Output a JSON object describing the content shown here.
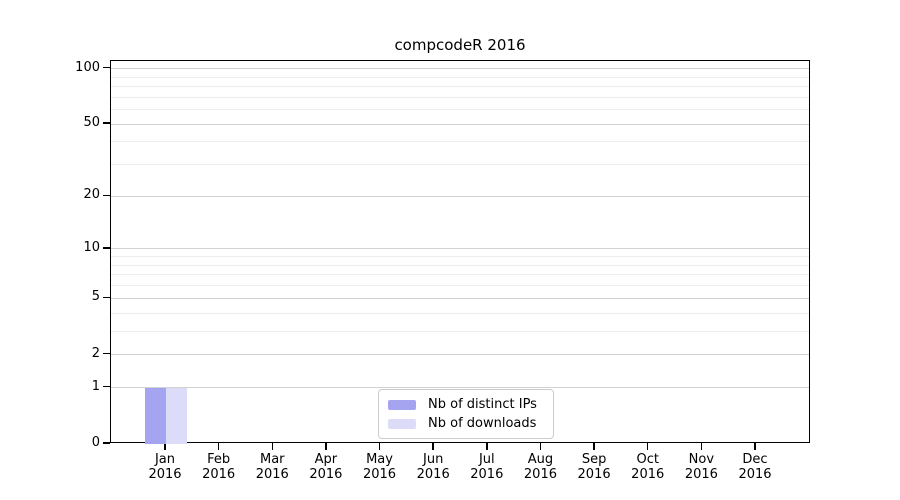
{
  "chart_data": {
    "type": "bar",
    "title": "compcodeR 2016",
    "categories": [
      "Jan 2016",
      "Feb 2016",
      "Mar 2016",
      "Apr 2016",
      "May 2016",
      "Jun 2016",
      "Jul 2016",
      "Aug 2016",
      "Sep 2016",
      "Oct 2016",
      "Nov 2016",
      "Dec 2016"
    ],
    "series": [
      {
        "name": "Nb of distinct IPs",
        "color": "#a4a4f1",
        "values": [
          1,
          0,
          0,
          0,
          0,
          0,
          0,
          0,
          0,
          0,
          0,
          0
        ]
      },
      {
        "name": "Nb of downloads",
        "color": "#dcdcf9",
        "values": [
          1,
          0,
          0,
          0,
          0,
          0,
          0,
          0,
          0,
          0,
          0,
          0
        ]
      }
    ],
    "yscale": "log1p",
    "ylim": [
      0,
      110
    ],
    "y_major_ticks": [
      0,
      1,
      2,
      5,
      10,
      20,
      50,
      100
    ],
    "y_minor_gridlines": [
      3,
      4,
      6,
      7,
      8,
      9,
      30,
      40,
      60,
      70,
      80,
      90
    ],
    "xlabel": "",
    "ylabel": "",
    "grid": "horizontal",
    "legend_position": "lower center"
  },
  "x_axis": {
    "months": [
      "Jan",
      "Feb",
      "Mar",
      "Apr",
      "May",
      "Jun",
      "Jul",
      "Aug",
      "Sep",
      "Oct",
      "Nov",
      "Dec"
    ],
    "year": "2016"
  },
  "colors": {
    "axis": "#000000",
    "major_grid": "#d2d2d2",
    "minor_grid": "#ececec",
    "legend_border": "#cccccc",
    "text": "#000000"
  }
}
